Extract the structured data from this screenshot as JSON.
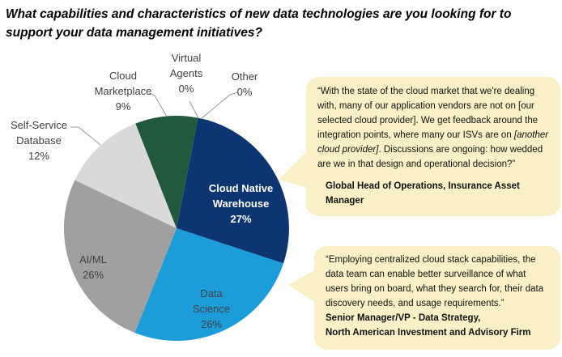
{
  "title": {
    "line1": "What capabilities and characteristics of new data technologies are you looking for to",
    "line2": "support your data management initiatives?"
  },
  "chart_data": {
    "type": "pie",
    "title": "What capabilities and characteristics of new data technologies are you looking for to support your data management initiatives?",
    "start_angle_deg": 11,
    "legend": "none",
    "slices": [
      {
        "label": "Cloud Native Warehouse",
        "value": 27,
        "pct_label": "27%",
        "color": "#0D3572",
        "label_position": "inside"
      },
      {
        "label": "Data Science",
        "value": 26,
        "pct_label": "26%",
        "color": "#1C9DD9",
        "label_position": "inside"
      },
      {
        "label": "AI/ML",
        "value": 26,
        "pct_label": "26%",
        "color": "#A0A0A0",
        "label_position": "inside"
      },
      {
        "label": "Self-Service Database",
        "value": 12,
        "pct_label": "12%",
        "color": "#D9D9D9",
        "label_position": "outside"
      },
      {
        "label": "Cloud Marketplace",
        "value": 9,
        "pct_label": "9%",
        "color": "#21583E",
        "label_position": "outside"
      },
      {
        "label": "Virtual Agents",
        "value": 0,
        "pct_label": "0%",
        "color": "#21583E",
        "label_position": "outside"
      },
      {
        "label": "Other",
        "value": 0,
        "pct_label": "0%",
        "color": "#0D3572",
        "label_position": "outside"
      }
    ]
  },
  "quotes": [
    {
      "segments": [
        {
          "text": "“With the state of the cloud market that we're dealing with, many of our application vendors are not on [our selected cloud provider]. We get feedback around the integration points, where many our ISVs are on ",
          "italic": false
        },
        {
          "text": "[another cloud provider]",
          "italic": true
        },
        {
          "text": ". Discussions are ongoing: how wedded are we in that design and operational decision?”",
          "italic": false
        }
      ],
      "attribution_lines": [
        "Global Head of Operations, Insurance Asset Manager"
      ]
    },
    {
      "text": "“Employing centralized cloud stack capabilities, the data team can enable better surveillance of what users bring on board, what they search for, their data discovery needs, and usage requirements.”",
      "attribution_lines": [
        "Senior Manager/VP - Data Strategy,",
        "North American Investment and Advisory Firm"
      ]
    }
  ],
  "colors": {
    "quote_bg": "#F9F0C7",
    "label_text": "#404040",
    "leader_line": "#999999",
    "inside_label_light": "#FFFFFF"
  }
}
